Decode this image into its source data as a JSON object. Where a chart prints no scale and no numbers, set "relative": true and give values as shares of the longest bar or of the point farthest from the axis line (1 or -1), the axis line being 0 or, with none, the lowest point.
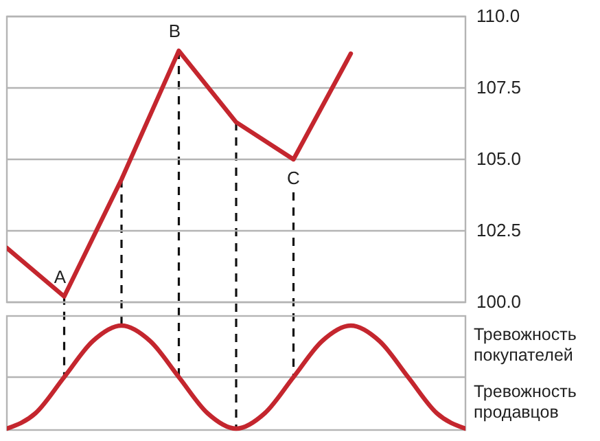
{
  "chart_data": [
    {
      "type": "line",
      "categories": [
        null,
        null,
        null,
        null,
        null,
        null,
        null,
        null,
        null
      ],
      "series": [
        {
          "color": "#c4262e",
          "values": [
            101.9,
            100.2,
            104.3,
            108.8,
            106.3,
            105.0,
            108.7,
            null,
            null
          ]
        }
      ],
      "ylim": [
        100,
        110
      ],
      "yticks": [
        {
          "value": 100,
          "label": "100.0"
        },
        {
          "value": 102.5,
          "label": "102.5"
        },
        {
          "value": 105,
          "label": "105.0"
        },
        {
          "value": 107.5,
          "label": "107.5"
        },
        {
          "value": 110,
          "label": "110.0"
        }
      ],
      "grid": true,
      "annotations": [
        {
          "text": "A",
          "y": 100.2
        },
        {
          "text": "B",
          "y": 108.8
        },
        {
          "text": "C",
          "y": 105.0
        }
      ]
    },
    {
      "type": "line",
      "relative": true,
      "categories": [
        null,
        null,
        null,
        null,
        null,
        null,
        null,
        null,
        null,
        null,
        null,
        null,
        null,
        null,
        null,
        null,
        null
      ],
      "series": [
        {
          "color": "#c4262e",
          "values": [
            0,
            0.15,
            0.5,
            0.85,
            1,
            0.85,
            0.5,
            0.15,
            0,
            0.15,
            0.5,
            0.85,
            1,
            0.85,
            0.5,
            0.15,
            0
          ]
        }
      ],
      "ref_lines": [
        {
          "axis": "y",
          "value": 0.5,
          "color": "#b4b4b4"
        }
      ],
      "annotations": [
        "Тревожность покупателей",
        "Тревожность продавцов"
      ]
    }
  ]
}
